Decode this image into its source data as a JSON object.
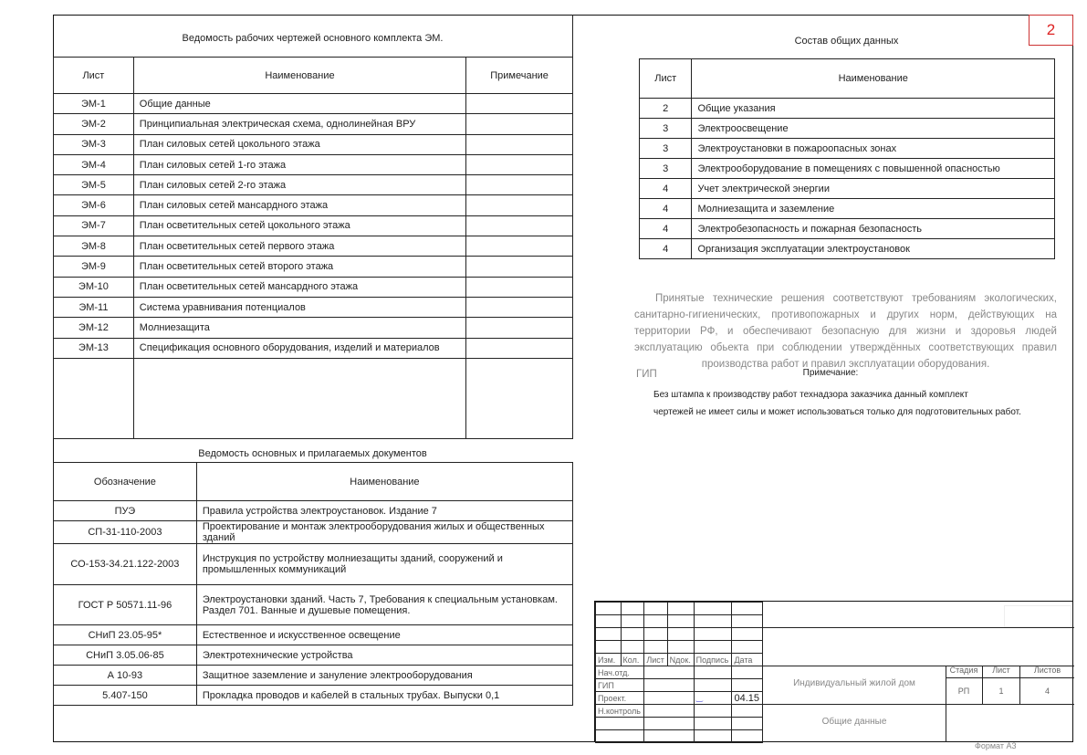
{
  "sheet_number": "2",
  "drawings": {
    "title": "Ведомость рабочих чертежей основного комплекта ЭМ.",
    "headers": [
      "Лист",
      "Наименование",
      "Примечание"
    ],
    "rows": [
      [
        "ЭМ-1",
        "Общие данные"
      ],
      [
        "ЭМ-2",
        "Принципиальная электрическая схема, однолинейная ВРУ"
      ],
      [
        "ЭМ-3",
        "План силовых сетей цокольного этажа"
      ],
      [
        "ЭМ-4",
        "План силовых сетей 1-го этажа"
      ],
      [
        "ЭМ-5",
        "План силовых сетей 2-го этажа"
      ],
      [
        "ЭМ-6",
        "План силовых сетей мансардного этажа"
      ],
      [
        "ЭМ-7",
        "План осветительных сетей цокольного этажа"
      ],
      [
        "ЭМ-8",
        "План осветительных сетей первого этажа"
      ],
      [
        "ЭМ-9",
        "План осветительных сетей второго этажа"
      ],
      [
        "ЭМ-10",
        "План осветительных сетей мансардного этажа"
      ],
      [
        "ЭМ-11",
        "Система уравнивания потенциалов"
      ],
      [
        "ЭМ-12",
        "Молниезащита"
      ],
      [
        "ЭМ-13",
        "Спецификация основного оборудования, изделий и материалов"
      ]
    ]
  },
  "documents": {
    "title": "Ведомость основных и прилагаемых документов",
    "headers": [
      "Обозначение",
      "Наименование"
    ],
    "rows": [
      [
        "ПУЭ",
        "Правила устройства электроустановок. Издание 7"
      ],
      [
        "СП-31-110-2003",
        "Проектирование и монтаж электрооборудования жилых и общественных зданий"
      ],
      [
        "СО-153-34.21.122-2003",
        "Инструкция по устройству молниезащиты зданий, сооружений и промышленных коммуникаций"
      ],
      [
        "ГОСТ Р 50571.11-96",
        "Электроустановки зданий. Часть 7, Требования к специальным установкам. Раздел 701. Ванные и душевые помещения."
      ],
      [
        "СНиП 23.05-95*",
        "Естественное и искусственное освещение"
      ],
      [
        "СНиП 3.05.06-85",
        "Электротехнические устройства"
      ],
      [
        "А 10-93",
        "Защитное заземление и зануление электрооборудования"
      ],
      [
        "5.407-150",
        "Прокладка проводов и кабелей в стальных трубах. Выпуски 0,1"
      ]
    ]
  },
  "general": {
    "title": "Состав общих данных",
    "headers": [
      "Лист",
      "Наименование"
    ],
    "rows": [
      [
        "2",
        "Общие указания"
      ],
      [
        "3",
        "Электроосвещение"
      ],
      [
        "3",
        "Электроустановки в пожароопасных зонах"
      ],
      [
        "3",
        "Электрооборудование в помещениях с повышенной опасностью"
      ],
      [
        "4",
        "Учет электрической энергии"
      ],
      [
        "4",
        "Молниезащита и заземление"
      ],
      [
        "4",
        "Электробезопасность и пожарная безопасность"
      ],
      [
        "4",
        "Организация эксплуатации электроустановок"
      ]
    ]
  },
  "statement": "Принятые технические решения соответствуют требованиям экологических, санитарно-гигиенических, противопожарных и других норм, действующих на территории РФ, и обеспечивают безопасную для жизни и здоровья людей эксплуатацию обьекта при соблюдении утверждённых соответствующих правил производства работ и правил эксплуатации оборудования.",
  "gip": "ГИП",
  "note": {
    "title": "Примечание:",
    "line1": "Без штампа к производству работ технадзора заказчика данный комплект",
    "line2": "чертежей не имеет силы и может использоваться только для подготовительных работ."
  },
  "title_block": {
    "cols": [
      "Изм.",
      "Кол.",
      "Лист",
      "Nдок.",
      "Подпись",
      "Дата"
    ],
    "roles": [
      "Нач.отд.",
      "ГИП",
      "Проект.",
      "Н.контроль"
    ],
    "date": "04.15",
    "project": "Индивидуальный жилой дом",
    "sheet_title": "Общие данные",
    "stage_label": "Стадия",
    "sheet_label": "Лист",
    "sheets_label": "Листов",
    "stage": "РП",
    "sheet": "1",
    "sheets": "4"
  },
  "format": "Формат А3"
}
